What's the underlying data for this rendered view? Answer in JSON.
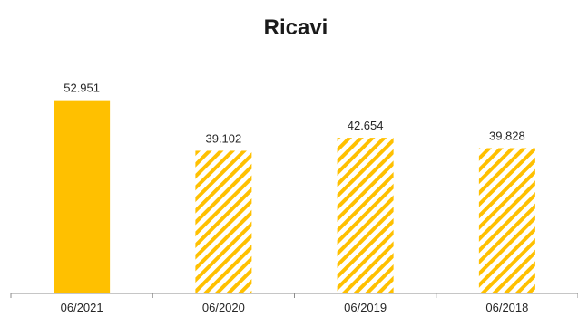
{
  "chart_data": {
    "type": "bar",
    "title": "Ricavi",
    "categories": [
      "06/2021",
      "06/2020",
      "06/2019",
      "06/2018"
    ],
    "values": [
      52.951,
      39.102,
      42.654,
      39.828
    ],
    "value_labels": [
      "52.951",
      "39.102",
      "42.654",
      "39.828"
    ],
    "xlabel": "",
    "ylabel": "",
    "ylim": [
      0,
      68
    ],
    "grid": false,
    "legend": "none",
    "bar_styles": [
      "solid",
      "hatched",
      "hatched",
      "hatched"
    ],
    "colors": {
      "bar": "#FFC000",
      "axis": "#8c8c8c"
    }
  }
}
